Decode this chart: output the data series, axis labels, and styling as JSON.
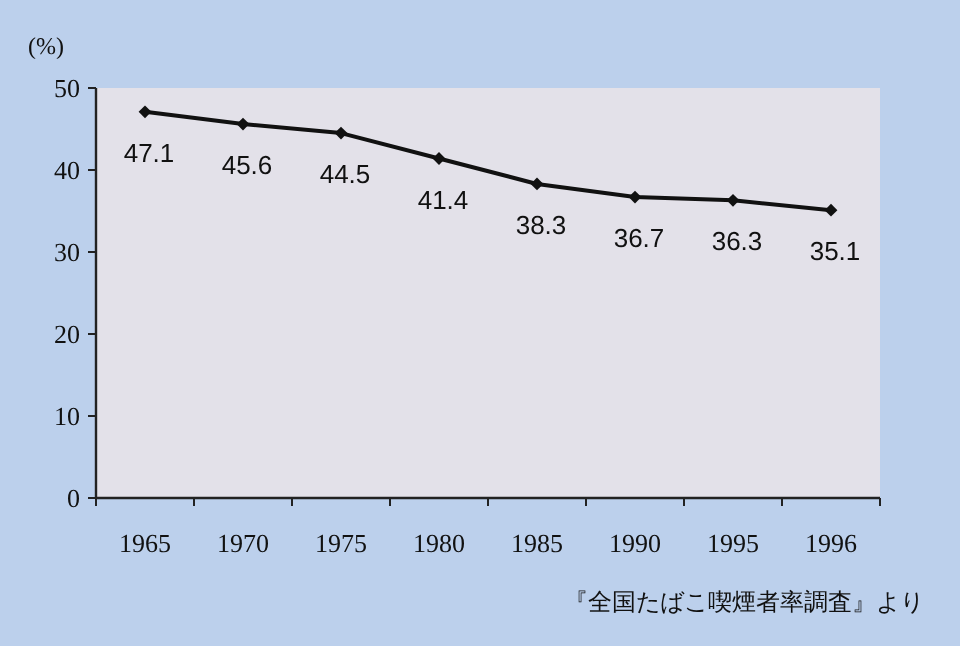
{
  "chart_data": {
    "type": "line",
    "ylabel": "(%)",
    "categories": [
      "1965",
      "1970",
      "1975",
      "1980",
      "1985",
      "1990",
      "1995",
      "1996"
    ],
    "values": [
      47.1,
      45.6,
      44.5,
      41.4,
      38.3,
      36.7,
      36.3,
      35.1
    ],
    "color": "#111111",
    "marker": "diamond",
    "line_style": "solid",
    "data_labels": true,
    "ylim": [
      0,
      50
    ],
    "yticks": [
      0,
      10,
      20,
      30,
      40,
      50
    ],
    "annotations": [
      "『全国たばこ喫煙者率調査』より"
    ]
  }
}
